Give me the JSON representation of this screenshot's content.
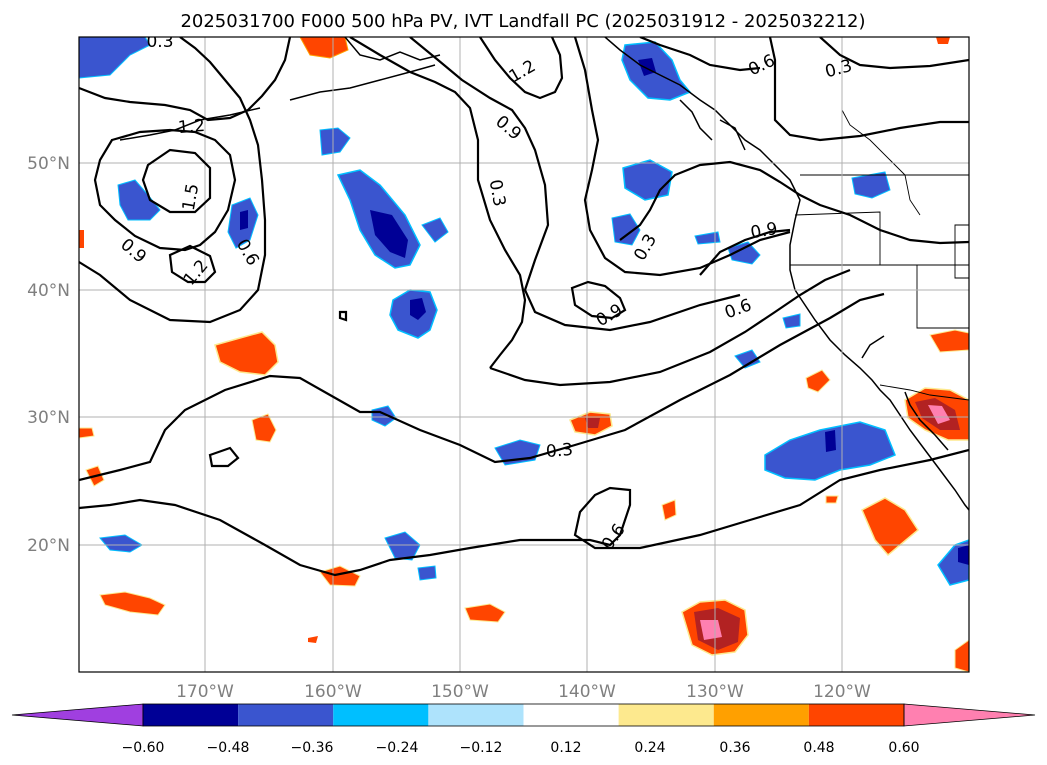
{
  "title": "2025031700 F000 500 hPa PV, IVT Landfall PC (2025031912 - 2025032212)",
  "map": {
    "lon_labels": [
      "170°W",
      "160°W",
      "150°W",
      "140°W",
      "130°W",
      "120°W"
    ],
    "lat_labels": [
      "50°N",
      "40°N",
      "30°N",
      "20°N"
    ]
  },
  "contour_labels": [
    "0.3",
    "1.2",
    "0.9",
    "1.2",
    "1.5",
    "0.9",
    "1.2",
    "0.6",
    "0.3",
    "0.9",
    "0.3",
    "0.6",
    "0.3",
    "0.9",
    "0.6",
    "0.3",
    "0.6"
  ],
  "colorbar": {
    "ticks": [
      "−0.60",
      "−0.48",
      "−0.36",
      "−0.24",
      "−0.12",
      "0.12",
      "0.24",
      "0.36",
      "0.48",
      "0.60"
    ],
    "colors": [
      "#a03fe0",
      "#000096",
      "#3a55cf",
      "#00bfff",
      "#aee3fc",
      "#ffffff",
      "#fde98e",
      "#ffa000",
      "#ff4500",
      "#b22222",
      "#ff80b0"
    ]
  }
}
